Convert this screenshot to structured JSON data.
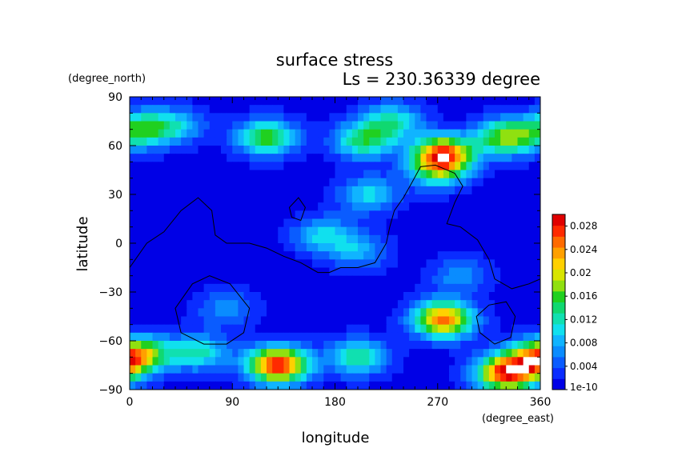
{
  "chart_data": {
    "type": "heatmap",
    "title": "surface stress",
    "subtitle": "Ls = 230.36339 degree",
    "xlabel": "longitude",
    "ylabel": "latitude",
    "xunit": "(degree_east)",
    "yunit": "(degree_north)",
    "xlim": [
      0,
      360
    ],
    "ylim": [
      -90,
      90
    ],
    "xticks": [
      0,
      90,
      180,
      270,
      360
    ],
    "yticks": [
      -90,
      -60,
      -30,
      0,
      30,
      60,
      90
    ],
    "colorbar": {
      "min": 0,
      "max": 0.03,
      "labels": [
        "1e-10",
        "0.004",
        "0.008",
        "0.012",
        "0.016",
        "0.02",
        "0.024",
        "0.028"
      ],
      "label_values": [
        0,
        0.004,
        0.008,
        0.012,
        0.016,
        0.02,
        0.024,
        0.028
      ],
      "colors": [
        "#0000e6",
        "#0a2cff",
        "#0a5cff",
        "#0a8cff",
        "#10b4ff",
        "#10e0ee",
        "#10e0b0",
        "#10d870",
        "#20d020",
        "#90e010",
        "#d8e400",
        "#ffd000",
        "#ffa000",
        "#ff6a00",
        "#ff2a00",
        "#e00000"
      ]
    },
    "field": {
      "background": 0.001,
      "features": [
        {
          "lon": 10,
          "lat": 70,
          "value": 0.013
        },
        {
          "lon": 40,
          "lat": 72,
          "value": 0.008
        },
        {
          "lon": 120,
          "lat": 65,
          "value": 0.015
        },
        {
          "lon": 205,
          "lat": 63,
          "value": 0.013
        },
        {
          "lon": 230,
          "lat": 75,
          "value": 0.011
        },
        {
          "lon": 275,
          "lat": 55,
          "value": 0.024
        },
        {
          "lon": 330,
          "lat": 65,
          "value": 0.017
        },
        {
          "lon": 210,
          "lat": 30,
          "value": 0.009
        },
        {
          "lon": 270,
          "lat": 45,
          "value": 0.012
        },
        {
          "lon": 170,
          "lat": 5,
          "value": 0.009
        },
        {
          "lon": 200,
          "lat": -5,
          "value": 0.007
        },
        {
          "lon": 290,
          "lat": -20,
          "value": 0.006
        },
        {
          "lon": 85,
          "lat": -40,
          "value": 0.006
        },
        {
          "lon": 275,
          "lat": -47,
          "value": 0.024
        },
        {
          "lon": 10,
          "lat": -68,
          "value": 0.014
        },
        {
          "lon": 60,
          "lat": -67,
          "value": 0.011
        },
        {
          "lon": 130,
          "lat": -75,
          "value": 0.028
        },
        {
          "lon": 200,
          "lat": -70,
          "value": 0.012
        },
        {
          "lon": 330,
          "lat": -80,
          "value": 0.026
        },
        {
          "lon": 355,
          "lat": -72,
          "value": 0.015
        }
      ]
    },
    "contours": [
      {
        "name": "topography",
        "points": [
          [
            0,
            -15
          ],
          [
            15,
            0
          ],
          [
            30,
            7
          ],
          [
            45,
            20
          ],
          [
            60,
            28
          ],
          [
            72,
            20
          ],
          [
            75,
            5
          ],
          [
            85,
            0
          ],
          [
            105,
            0
          ],
          [
            120,
            -3
          ],
          [
            135,
            -8
          ],
          [
            150,
            -12
          ],
          [
            165,
            -18
          ],
          [
            175,
            -18
          ],
          [
            185,
            -15
          ],
          [
            200,
            -15
          ],
          [
            215,
            -12
          ],
          [
            225,
            0
          ],
          [
            228,
            10
          ],
          [
            232,
            20
          ],
          [
            240,
            28
          ],
          [
            248,
            38
          ],
          [
            255,
            47
          ],
          [
            268,
            48
          ],
          [
            285,
            43
          ],
          [
            292,
            35
          ],
          [
            285,
            25
          ],
          [
            278,
            12
          ],
          [
            290,
            10
          ],
          [
            305,
            2
          ],
          [
            315,
            -10
          ],
          [
            320,
            -22
          ],
          [
            335,
            -28
          ],
          [
            350,
            -25
          ],
          [
            360,
            -22
          ]
        ]
      },
      {
        "name": "ring-1",
        "closed": true,
        "points": [
          [
            40,
            -40
          ],
          [
            55,
            -25
          ],
          [
            70,
            -20
          ],
          [
            88,
            -25
          ],
          [
            105,
            -40
          ],
          [
            100,
            -55
          ],
          [
            85,
            -62
          ],
          [
            65,
            -62
          ],
          [
            45,
            -55
          ]
        ]
      },
      {
        "name": "ring-2",
        "closed": true,
        "points": [
          [
            140,
            22
          ],
          [
            148,
            28
          ],
          [
            154,
            22
          ],
          [
            150,
            14
          ],
          [
            142,
            16
          ]
        ]
      },
      {
        "name": "ring-3",
        "closed": true,
        "points": [
          [
            304,
            -45
          ],
          [
            315,
            -38
          ],
          [
            330,
            -36
          ],
          [
            338,
            -45
          ],
          [
            334,
            -58
          ],
          [
            320,
            -62
          ],
          [
            307,
            -55
          ]
        ]
      }
    ]
  }
}
